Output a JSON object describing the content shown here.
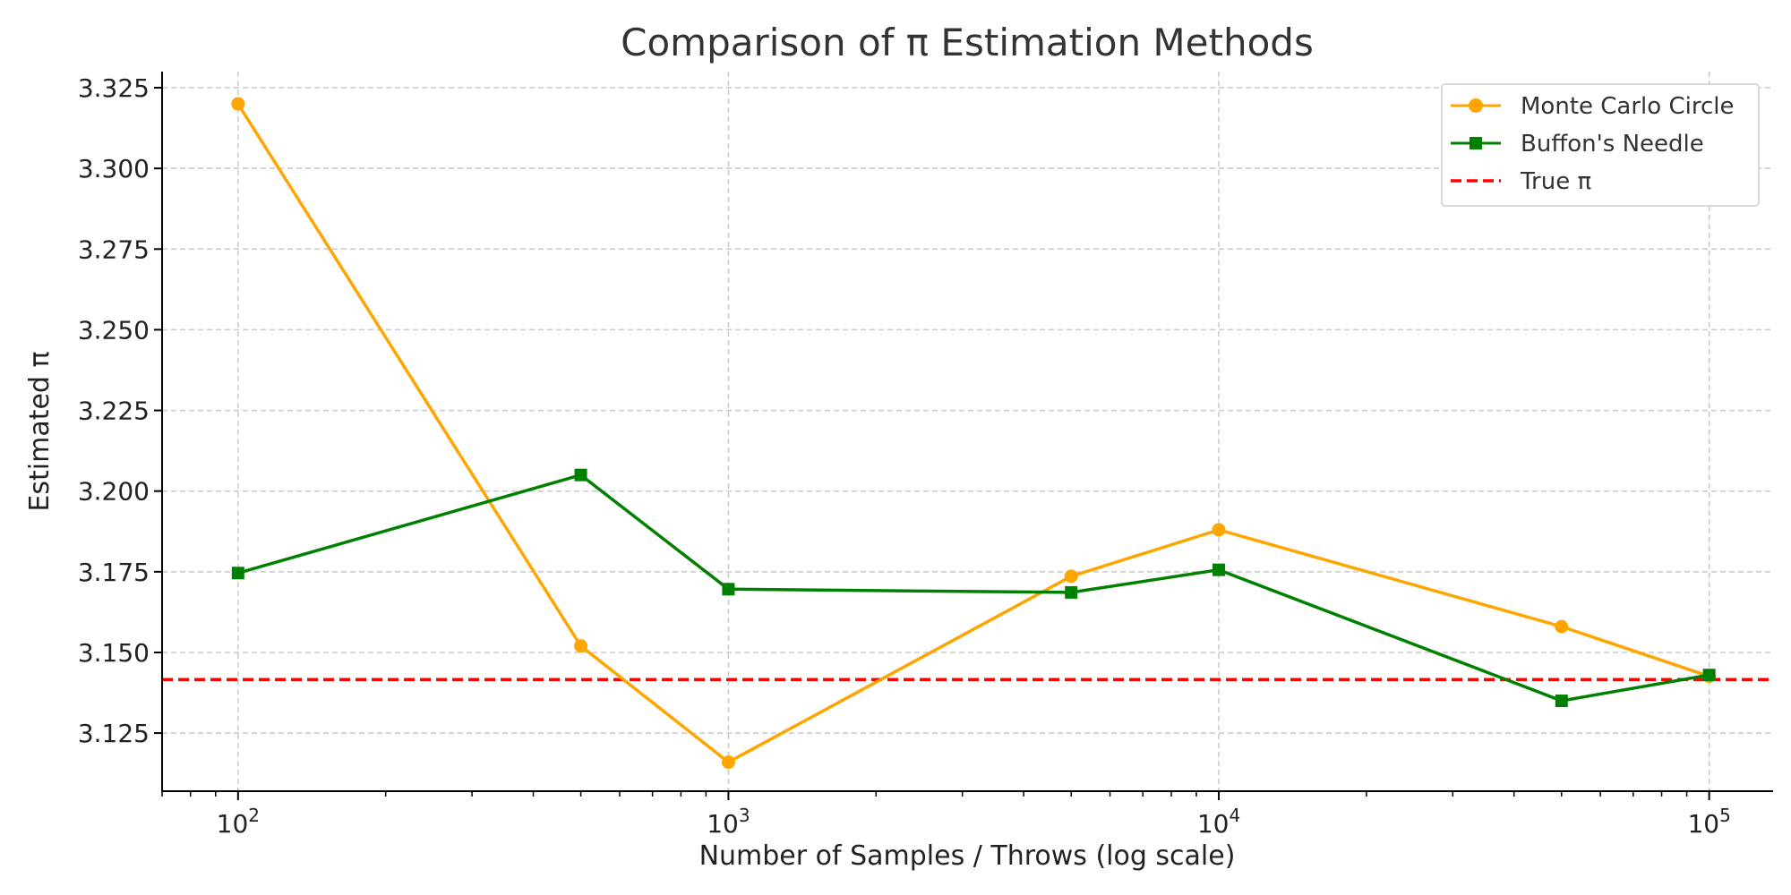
{
  "chart_data": {
    "type": "line",
    "title": "Comparison of π Estimation Methods",
    "xlabel": "Number of Samples / Throws (log scale)",
    "ylabel": "Estimated π",
    "x_scale": "log",
    "xlim": [
      70,
      135000
    ],
    "ylim": [
      3.107,
      3.33
    ],
    "x_ticks": [
      100,
      1000,
      10000,
      100000
    ],
    "x_tick_labels": [
      {
        "base": "10",
        "exp": "2"
      },
      {
        "base": "10",
        "exp": "3"
      },
      {
        "base": "10",
        "exp": "4"
      },
      {
        "base": "10",
        "exp": "5"
      }
    ],
    "y_ticks": [
      3.125,
      3.15,
      3.175,
      3.2,
      3.225,
      3.25,
      3.275,
      3.3,
      3.325
    ],
    "y_tick_labels": [
      "3.125",
      "3.150",
      "3.175",
      "3.200",
      "3.225",
      "3.250",
      "3.275",
      "3.300",
      "3.325"
    ],
    "grid": true,
    "legend_position": "top-right",
    "series": [
      {
        "name": "Monte Carlo Circle",
        "color": "#FFA500",
        "marker": "circle",
        "x": [
          100,
          500,
          1000,
          5000,
          10000,
          50000,
          100000
        ],
        "y": [
          3.32,
          3.152,
          3.116,
          3.1736,
          3.188,
          3.158,
          3.1426
        ]
      },
      {
        "name": "Buffon's Needle",
        "color": "#008000",
        "marker": "square",
        "x": [
          100,
          500,
          1000,
          5000,
          10000,
          50000,
          100000
        ],
        "y": [
          3.1746,
          3.205,
          3.1696,
          3.1686,
          3.1756,
          3.135,
          3.143
        ]
      }
    ],
    "reference_line": {
      "name": "True π",
      "y": 3.14159,
      "color": "#FF0000",
      "style": "dashed"
    }
  }
}
